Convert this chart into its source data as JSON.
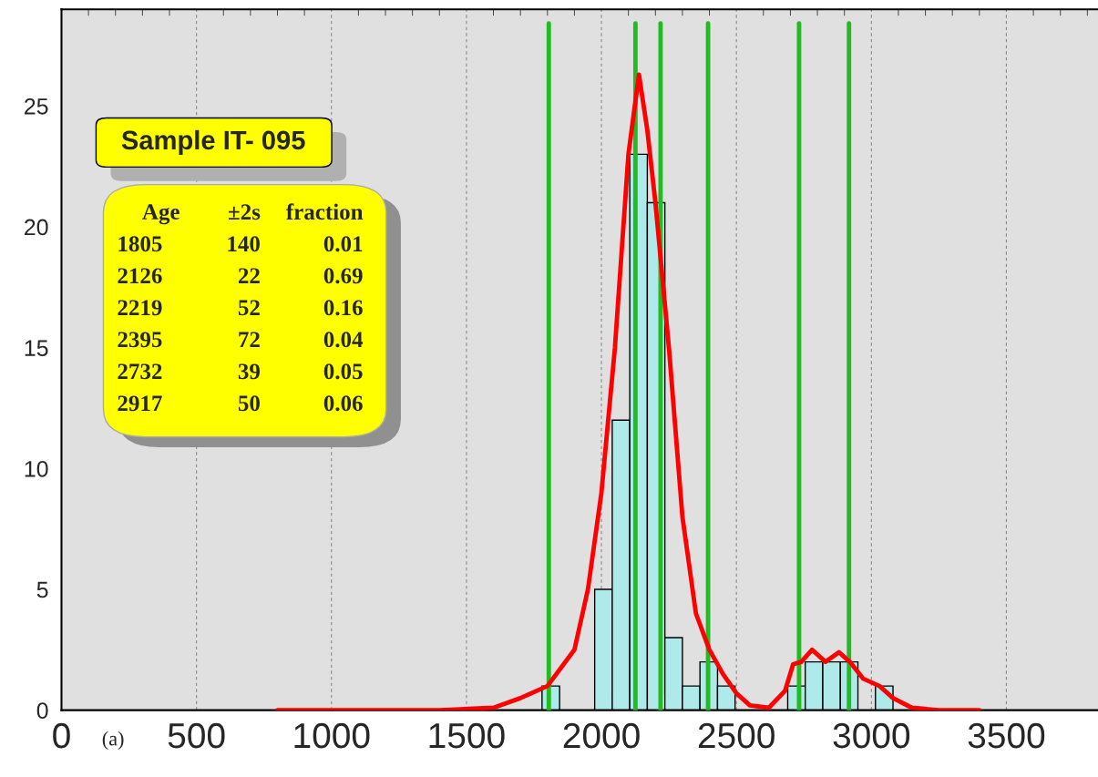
{
  "chart_data": {
    "type": "histogram",
    "title": "Sample IT- 095",
    "bins": [
      1780,
      1845,
      1910,
      1975,
      2040,
      2105,
      2170,
      2235,
      2300,
      2365,
      2430,
      2495,
      2560,
      2625,
      2690,
      2755,
      2820,
      2885,
      2950,
      3015,
      3080
    ],
    "values": [
      1,
      0,
      0,
      5,
      12,
      23,
      21,
      3,
      1,
      2,
      1,
      0,
      0,
      0,
      1,
      2,
      2,
      2,
      0,
      1
    ],
    "color": "#aeeaea",
    "series": [
      {
        "type": "line",
        "color": "#ff0000",
        "x": [
          800,
          1000,
          1200,
          1400,
          1600,
          1700,
          1800,
          1900,
          1950,
          2000,
          2050,
          2100,
          2139,
          2170,
          2200,
          2250,
          2300,
          2350,
          2400,
          2450,
          2500,
          2550,
          2620,
          2680,
          2710,
          2740,
          2780,
          2830,
          2880,
          2920,
          2970,
          3030,
          3080,
          3150,
          3250,
          3400
        ],
        "values": [
          0,
          0,
          0,
          0,
          0.1,
          0.5,
          1.0,
          2.5,
          5,
          9,
          15,
          23,
          26.3,
          24,
          21,
          15,
          8,
          4,
          2.5,
          1.5,
          0.7,
          0.2,
          0.1,
          0.8,
          1.9,
          2.0,
          2.5,
          2.0,
          2.4,
          2.0,
          1.3,
          1.0,
          0.5,
          0.1,
          0,
          0
        ]
      }
    ],
    "ref_lines": [
      {
        "axis": "x",
        "value": 1805,
        "color": "#22bb22"
      },
      {
        "axis": "x",
        "value": 2126,
        "color": "#22bb22"
      },
      {
        "axis": "x",
        "value": 2219,
        "color": "#22bb22"
      },
      {
        "axis": "x",
        "value": 2395,
        "color": "#22bb22"
      },
      {
        "axis": "x",
        "value": 2732,
        "color": "#22bb22"
      },
      {
        "axis": "x",
        "value": 2917,
        "color": "#22bb22"
      }
    ],
    "annotations": [
      "Age ±2s fraction",
      "1805 140 0.01",
      "2126 22 0.69",
      "2219 52 0.16",
      "2395 72 0.04",
      "2732 39 0.05",
      "2917 50 0.06",
      "(a)"
    ],
    "xlim": [
      0,
      3880
    ],
    "ylim": [
      0,
      29
    ],
    "xticks": [
      0,
      500,
      1000,
      1500,
      2000,
      2500,
      3000,
      3500
    ],
    "yticks": [
      0,
      5,
      10,
      15,
      20,
      25
    ],
    "grid": "x"
  }
}
